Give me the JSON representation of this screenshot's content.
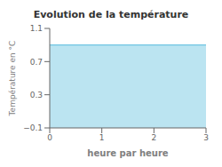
{
  "chart_data": {
    "type": "area",
    "title": "Evolution de la température",
    "xlabel": "heure par heure",
    "ylabel": "Température en °C",
    "x": [
      0,
      3
    ],
    "values": [
      0.9,
      0.9
    ],
    "color": "#55bbdd",
    "xlim": [
      0,
      3
    ],
    "ylim": [
      -0.1,
      1.1
    ],
    "xticks": [
      0,
      1,
      2,
      3
    ],
    "yticks": [
      {
        "value": -0.1,
        "label": "−0.1"
      },
      0.3,
      0.7,
      1.1
    ],
    "grid": false
  }
}
